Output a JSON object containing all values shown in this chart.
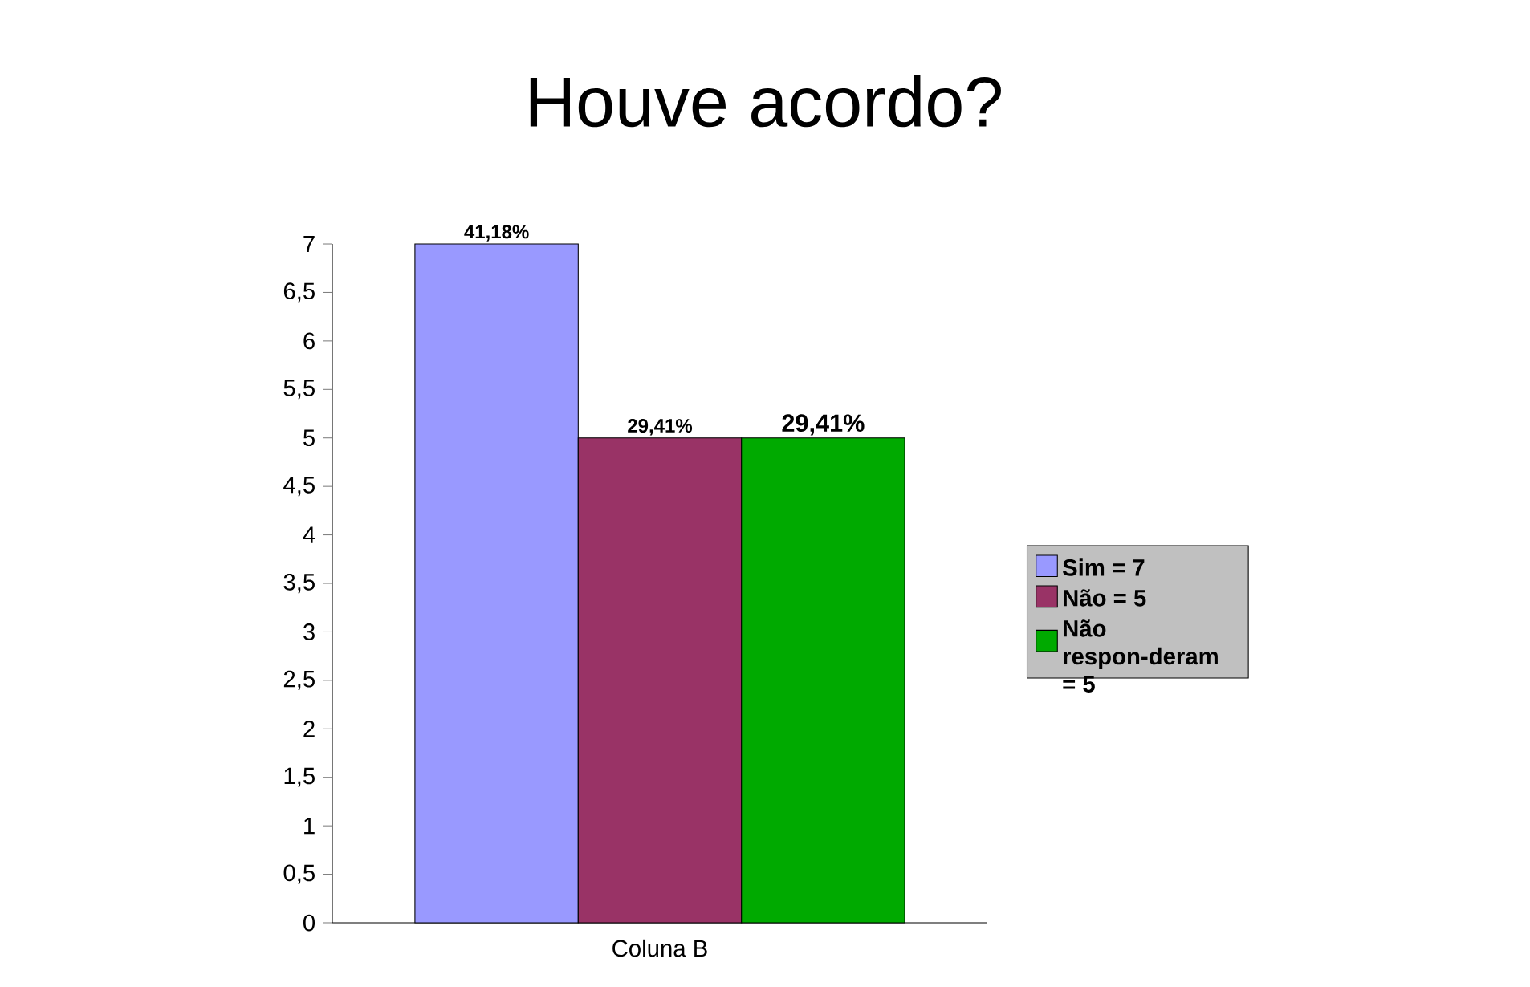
{
  "chart_data": {
    "type": "bar",
    "title": "Houve acordo?",
    "categories": [
      "Coluna B"
    ],
    "series": [
      {
        "name": "Sim = 7",
        "color": "#9999ff",
        "values": [
          7
        ]
      },
      {
        "name": "Não = 5",
        "color": "#993366",
        "values": [
          5
        ]
      },
      {
        "name": "Não respon-deram = 5",
        "color": "#00aa00",
        "values": [
          5
        ]
      }
    ],
    "annotations": [
      "41,18%",
      "29,41%",
      "29,41%"
    ],
    "ylim": [
      0,
      7
    ],
    "yticks": [
      0,
      {
        "value": 0.5,
        "label": "0,5"
      },
      1,
      {
        "value": 1.5,
        "label": "1,5"
      },
      2,
      {
        "value": 2.5,
        "label": "2,5"
      },
      3,
      {
        "value": 3.5,
        "label": "3,5"
      },
      4,
      {
        "value": 4.5,
        "label": "4,5"
      },
      5,
      {
        "value": 5.5,
        "label": "5,5"
      },
      6,
      {
        "value": 6.5,
        "label": "6,5"
      },
      7
    ],
    "legend": "right",
    "grid": false
  }
}
